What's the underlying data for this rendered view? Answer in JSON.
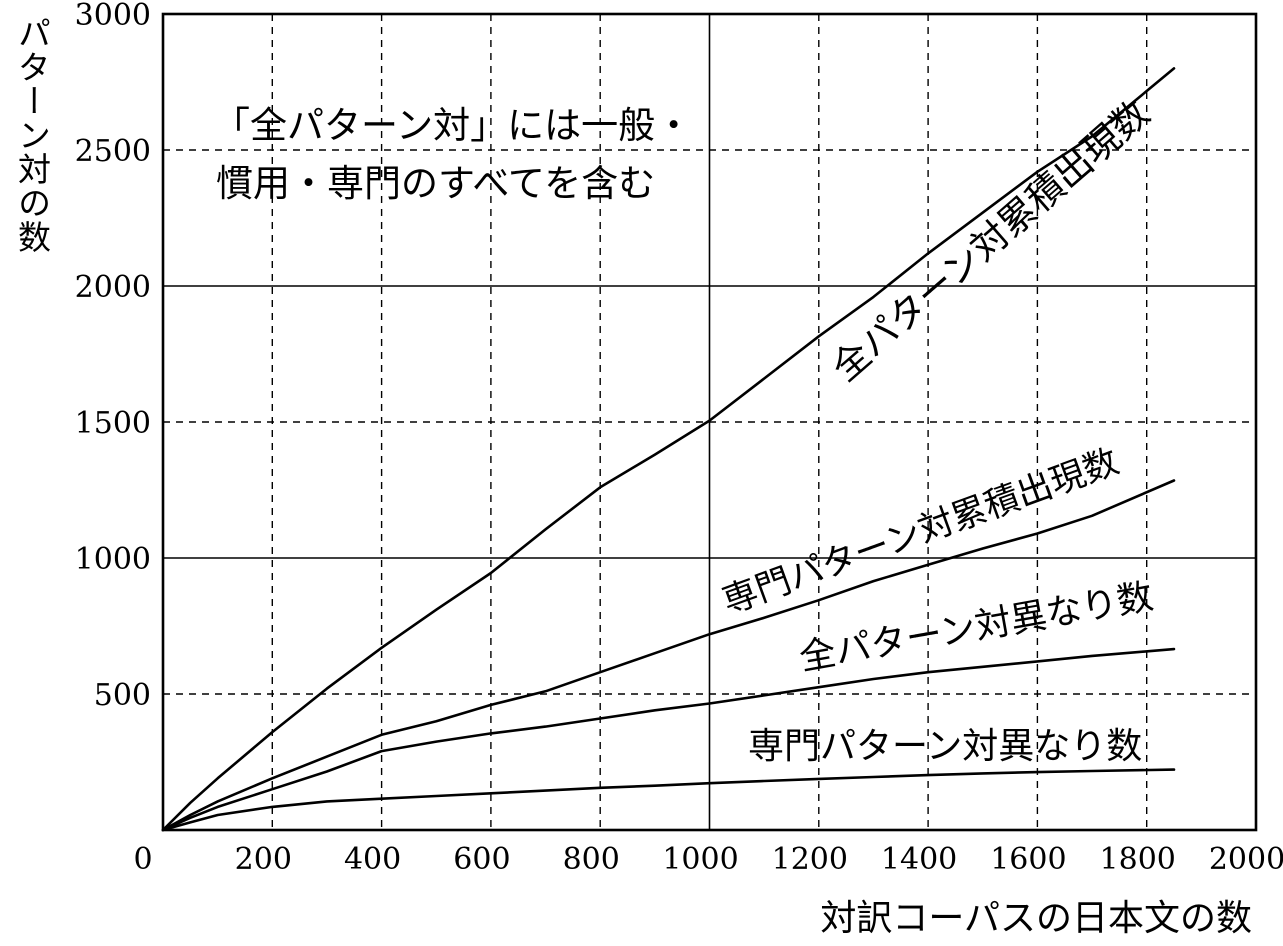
{
  "chart_data": {
    "type": "line",
    "title": "",
    "xlabel": "対訳コーパスの日本文の数",
    "ylabel": "パターン対の数",
    "xlim": [
      0,
      2000
    ],
    "ylim": [
      0,
      3000
    ],
    "x_ticks": [
      0,
      200,
      400,
      600,
      800,
      1000,
      1200,
      1400,
      1600,
      1800,
      2000
    ],
    "y_ticks": [
      500,
      1000,
      1500,
      2000,
      2500,
      3000
    ],
    "x_solid_gridlines": [
      1000
    ],
    "y_solid_gridlines": [
      1000,
      2000
    ],
    "annotation": {
      "line1": "「全パターン対」には一般・",
      "line2": "慣用・専門のすべてを含む"
    },
    "series": [
      {
        "name": "全パターン対累積出現数",
        "x": [
          0,
          50,
          100,
          200,
          300,
          400,
          500,
          600,
          700,
          800,
          900,
          1000,
          1100,
          1200,
          1300,
          1400,
          1500,
          1600,
          1700,
          1850
        ],
        "y": [
          0,
          100,
          190,
          360,
          520,
          670,
          810,
          945,
          1105,
          1260,
          1380,
          1505,
          1660,
          1815,
          1960,
          2120,
          2270,
          2420,
          2550,
          2800
        ]
      },
      {
        "name": "専門パターン対累積出現数",
        "x": [
          0,
          50,
          100,
          200,
          300,
          400,
          500,
          600,
          700,
          800,
          900,
          1000,
          1100,
          1200,
          1300,
          1400,
          1500,
          1600,
          1700,
          1850
        ],
        "y": [
          0,
          55,
          105,
          190,
          270,
          350,
          400,
          460,
          510,
          580,
          650,
          720,
          780,
          845,
          915,
          975,
          1035,
          1090,
          1155,
          1285
        ]
      },
      {
        "name": "全パターン対異なり数",
        "x": [
          0,
          50,
          100,
          200,
          300,
          400,
          500,
          600,
          700,
          800,
          900,
          1000,
          1100,
          1200,
          1300,
          1400,
          1500,
          1600,
          1700,
          1850
        ],
        "y": [
          0,
          45,
          85,
          150,
          215,
          290,
          325,
          355,
          380,
          410,
          440,
          465,
          495,
          525,
          555,
          580,
          600,
          620,
          640,
          665
        ]
      },
      {
        "name": "専門パターン対異なり数",
        "x": [
          0,
          50,
          100,
          200,
          300,
          400,
          500,
          600,
          700,
          800,
          900,
          1000,
          1100,
          1200,
          1300,
          1400,
          1500,
          1600,
          1700,
          1850
        ],
        "y": [
          0,
          28,
          55,
          85,
          105,
          115,
          125,
          135,
          145,
          155,
          163,
          172,
          180,
          188,
          195,
          202,
          208,
          213,
          217,
          222
        ]
      }
    ]
  }
}
